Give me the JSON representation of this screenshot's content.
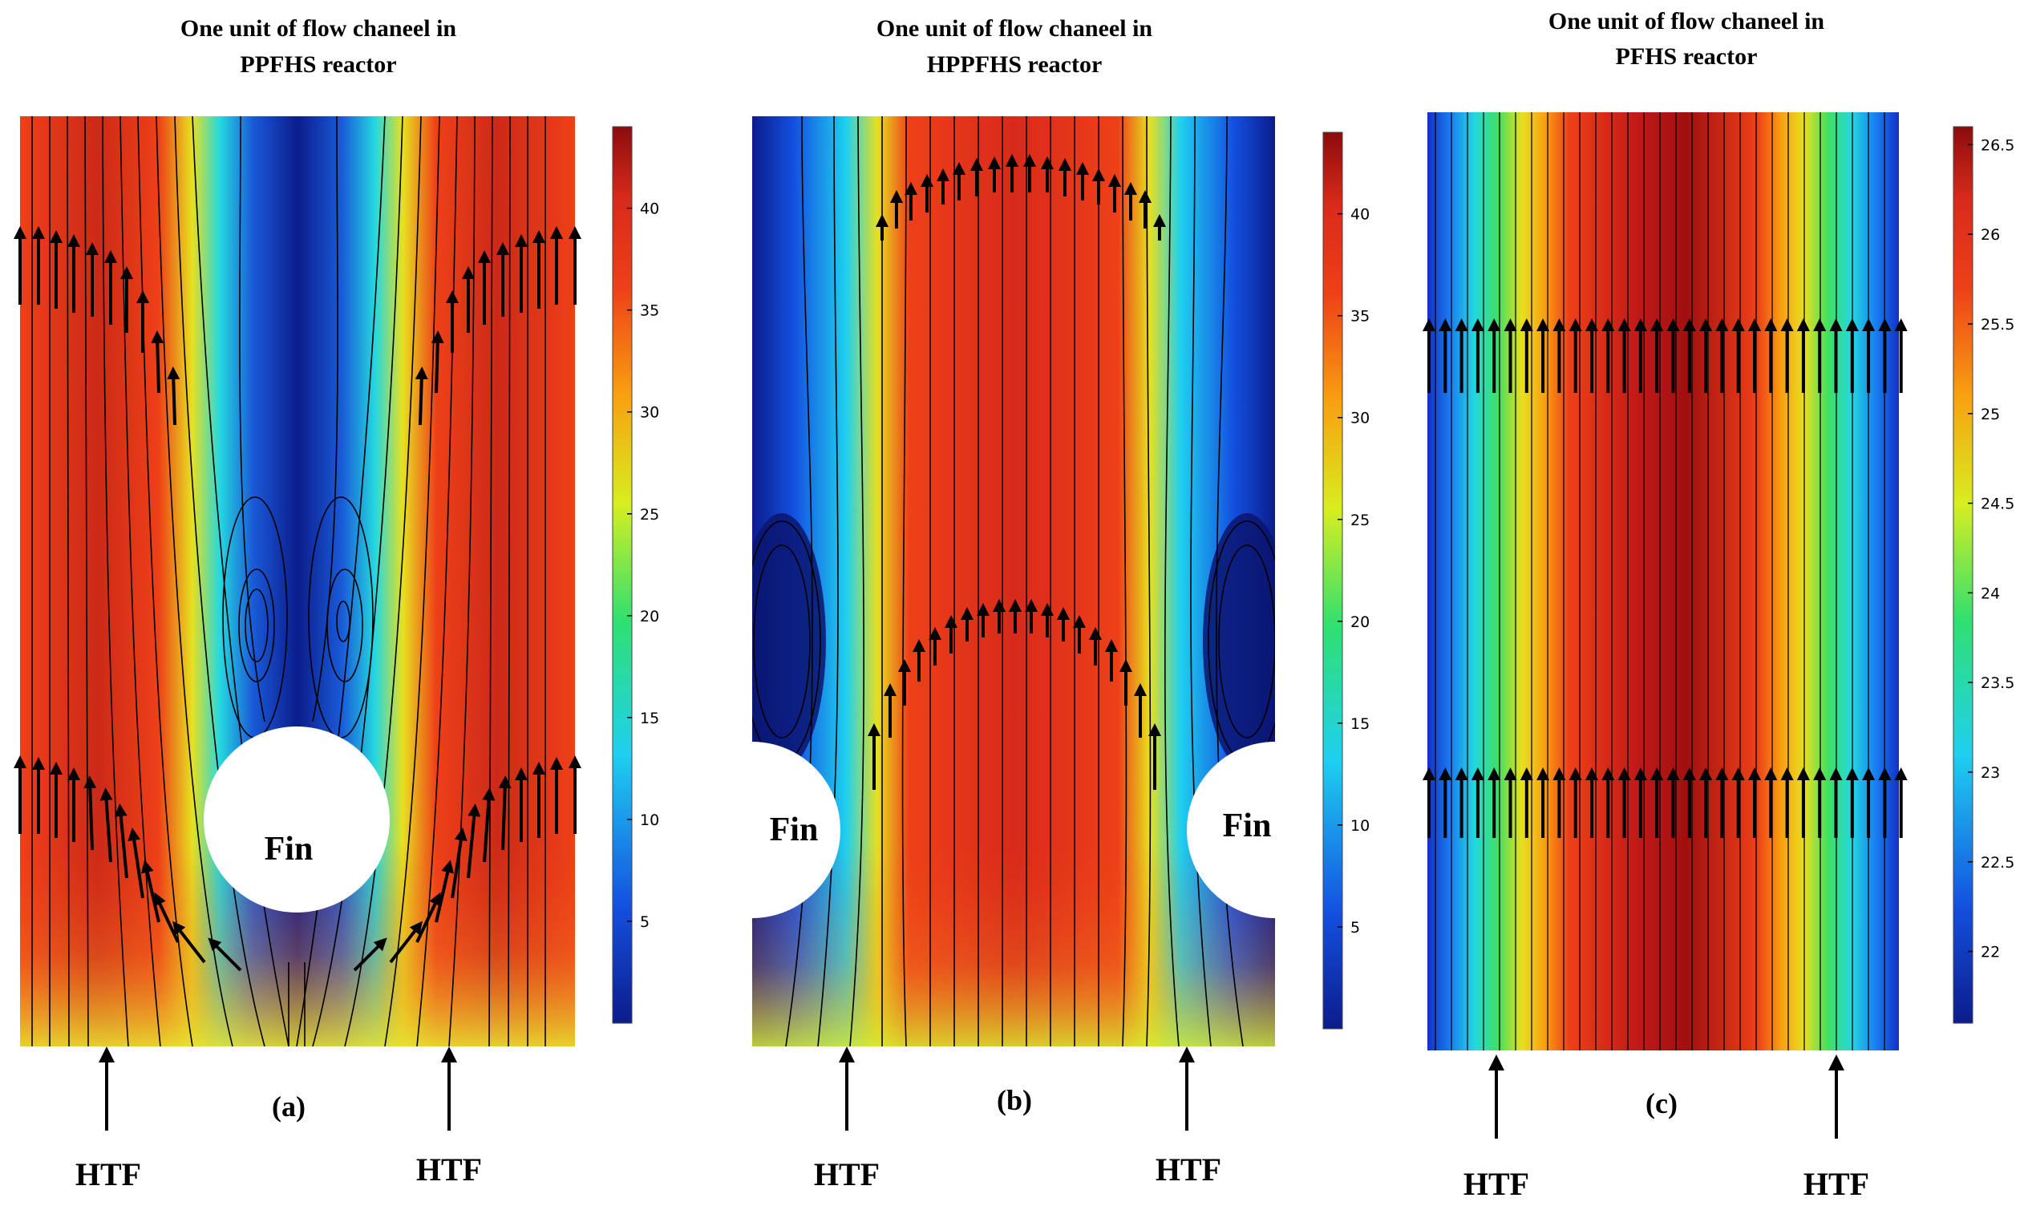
{
  "figure": {
    "colormap": [
      "#0b1c8c",
      "#1450e0",
      "#1fd0f0",
      "#30e070",
      "#d8ee20",
      "#f8a010",
      "#ee4018",
      "#d82a1a",
      "#8c0c0c"
    ]
  },
  "panels": [
    {
      "id": "a",
      "title_line1": "One unit of flow chaneel in",
      "title_line2": "PPFHS reactor",
      "label": "(a)",
      "htf_left": "HTF",
      "htf_right": "HTF",
      "fin_labels": [
        "Fin"
      ],
      "colorbar": {
        "min": 0,
        "max": 44,
        "ticks": [
          "40",
          "35",
          "30",
          "25",
          "20",
          "15",
          "10",
          "5"
        ],
        "tick_values": [
          40,
          35,
          30,
          25,
          20,
          15,
          10,
          5
        ]
      }
    },
    {
      "id": "b",
      "title_line1": "One unit of flow chaneel in",
      "title_line2": "HPPFHS reactor",
      "label": "(b)",
      "htf_left": "HTF",
      "htf_right": "HTF",
      "fin_labels": [
        "Fin",
        "Fin"
      ],
      "colorbar": {
        "min": 0,
        "max": 44,
        "ticks": [
          "40",
          "35",
          "30",
          "25",
          "20",
          "15",
          "10",
          "5"
        ],
        "tick_values": [
          40,
          35,
          30,
          25,
          20,
          15,
          10,
          5
        ]
      }
    },
    {
      "id": "c",
      "title_line1": "One unit of flow chaneel in",
      "title_line2": "PFHS reactor",
      "label": "(c)",
      "htf_left": "HTF",
      "htf_right": "HTF",
      "fin_labels": [],
      "colorbar": {
        "min": 21.6,
        "max": 26.6,
        "ticks": [
          "26.5",
          "26",
          "25.5",
          "25",
          "24.5",
          "24",
          "23.5",
          "23",
          "22.5",
          "22"
        ],
        "tick_values": [
          26.5,
          26,
          25.5,
          25,
          24.5,
          24,
          23.5,
          23,
          22.5,
          22
        ]
      }
    }
  ]
}
